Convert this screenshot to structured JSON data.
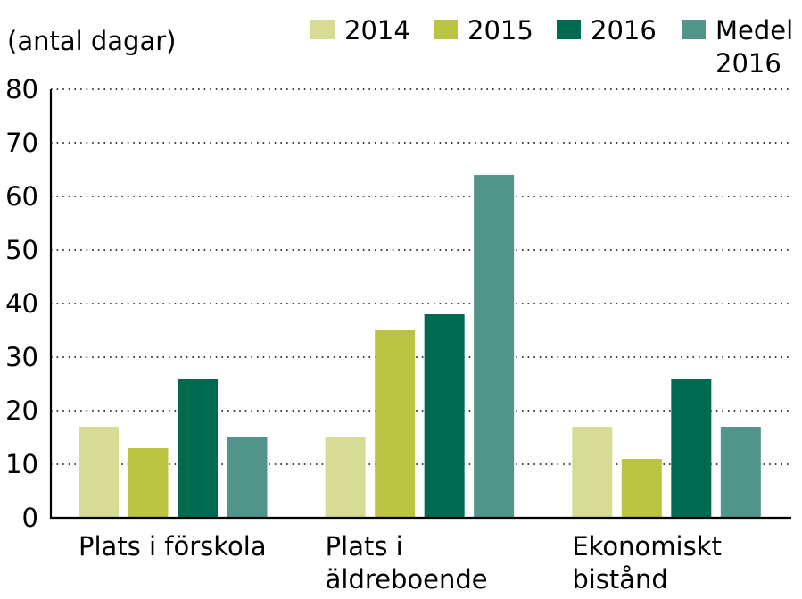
{
  "chart_data": {
    "type": "bar",
    "ylabel": "(antal dagar)",
    "ylim": [
      0,
      80
    ],
    "yticks": [
      0,
      10,
      20,
      30,
      40,
      50,
      60,
      70,
      80
    ],
    "grid": true,
    "legend_position": "top-right",
    "categories": [
      [
        "Plats i förskola"
      ],
      [
        "Plats i",
        "äldreboende"
      ],
      [
        "Ekonomiskt",
        "bistånd"
      ]
    ],
    "series": [
      {
        "name": [
          "2014"
        ],
        "color": "#d6dc96",
        "values": [
          17,
          15,
          17
        ]
      },
      {
        "name": [
          "2015"
        ],
        "color": "#bcc444",
        "values": [
          13,
          35,
          11
        ]
      },
      {
        "name": [
          "2016"
        ],
        "color": "#006a51",
        "values": [
          26,
          38,
          26
        ]
      },
      {
        "name": [
          "Medel",
          "2016"
        ],
        "color": "#52958a",
        "values": [
          15,
          64,
          17
        ]
      }
    ]
  }
}
